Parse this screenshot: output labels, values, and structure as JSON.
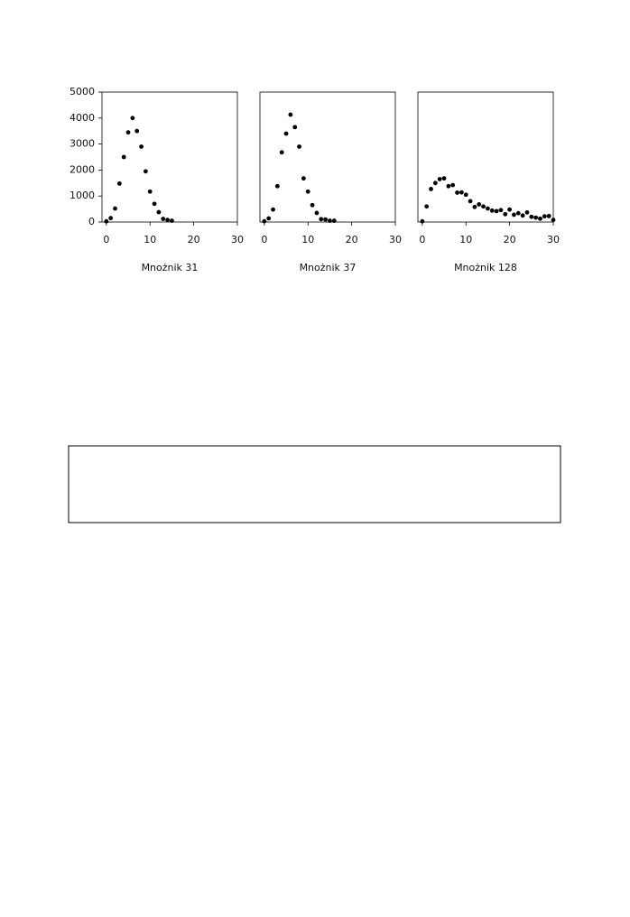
{
  "chart_data": [
    {
      "type": "scatter",
      "title": "Mnożnik 31",
      "x": [
        0,
        1,
        2,
        3,
        4,
        5,
        6,
        7,
        8,
        9,
        10,
        11,
        12,
        13,
        14,
        15
      ],
      "values": [
        30,
        150,
        520,
        1480,
        2500,
        3450,
        4000,
        3500,
        2900,
        1950,
        1170,
        700,
        380,
        120,
        80,
        50
      ],
      "color": "#000000",
      "xlim": [
        -1,
        30
      ],
      "ylim": [
        0,
        5000
      ],
      "xticks": [
        0,
        10,
        20,
        30
      ],
      "yticks": [
        0,
        1000,
        2000,
        3000,
        4000,
        5000
      ]
    },
    {
      "type": "scatter",
      "title": "Mnożnik 37",
      "x": [
        0,
        1,
        2,
        3,
        4,
        5,
        6,
        7,
        8,
        9,
        10,
        11,
        12,
        13,
        14,
        15,
        16
      ],
      "values": [
        30,
        140,
        480,
        1380,
        2680,
        3400,
        4130,
        3650,
        2900,
        1680,
        1170,
        650,
        350,
        110,
        100,
        50,
        50
      ],
      "color": "#000000",
      "xlim": [
        -1,
        30
      ],
      "ylim": [
        0,
        5000
      ],
      "xticks": [
        0,
        10,
        20,
        30
      ]
    },
    {
      "type": "scatter",
      "title": "Mnożnik 128",
      "x": [
        0,
        1,
        2,
        3,
        4,
        5,
        6,
        7,
        8,
        9,
        10,
        11,
        12,
        13,
        14,
        15,
        16,
        17,
        18,
        19,
        20,
        21,
        22,
        23,
        24,
        25,
        26,
        27,
        28,
        29,
        30
      ],
      "values": [
        30,
        600,
        1270,
        1500,
        1650,
        1680,
        1380,
        1420,
        1130,
        1140,
        1050,
        800,
        580,
        680,
        600,
        520,
        440,
        420,
        460,
        300,
        480,
        280,
        340,
        250,
        370,
        200,
        170,
        130,
        220,
        230,
        80
      ],
      "color": "#000000",
      "xlim": [
        -1,
        30
      ],
      "ylim": [
        0,
        5000
      ],
      "xticks": [
        0,
        10,
        20,
        30
      ]
    }
  ]
}
